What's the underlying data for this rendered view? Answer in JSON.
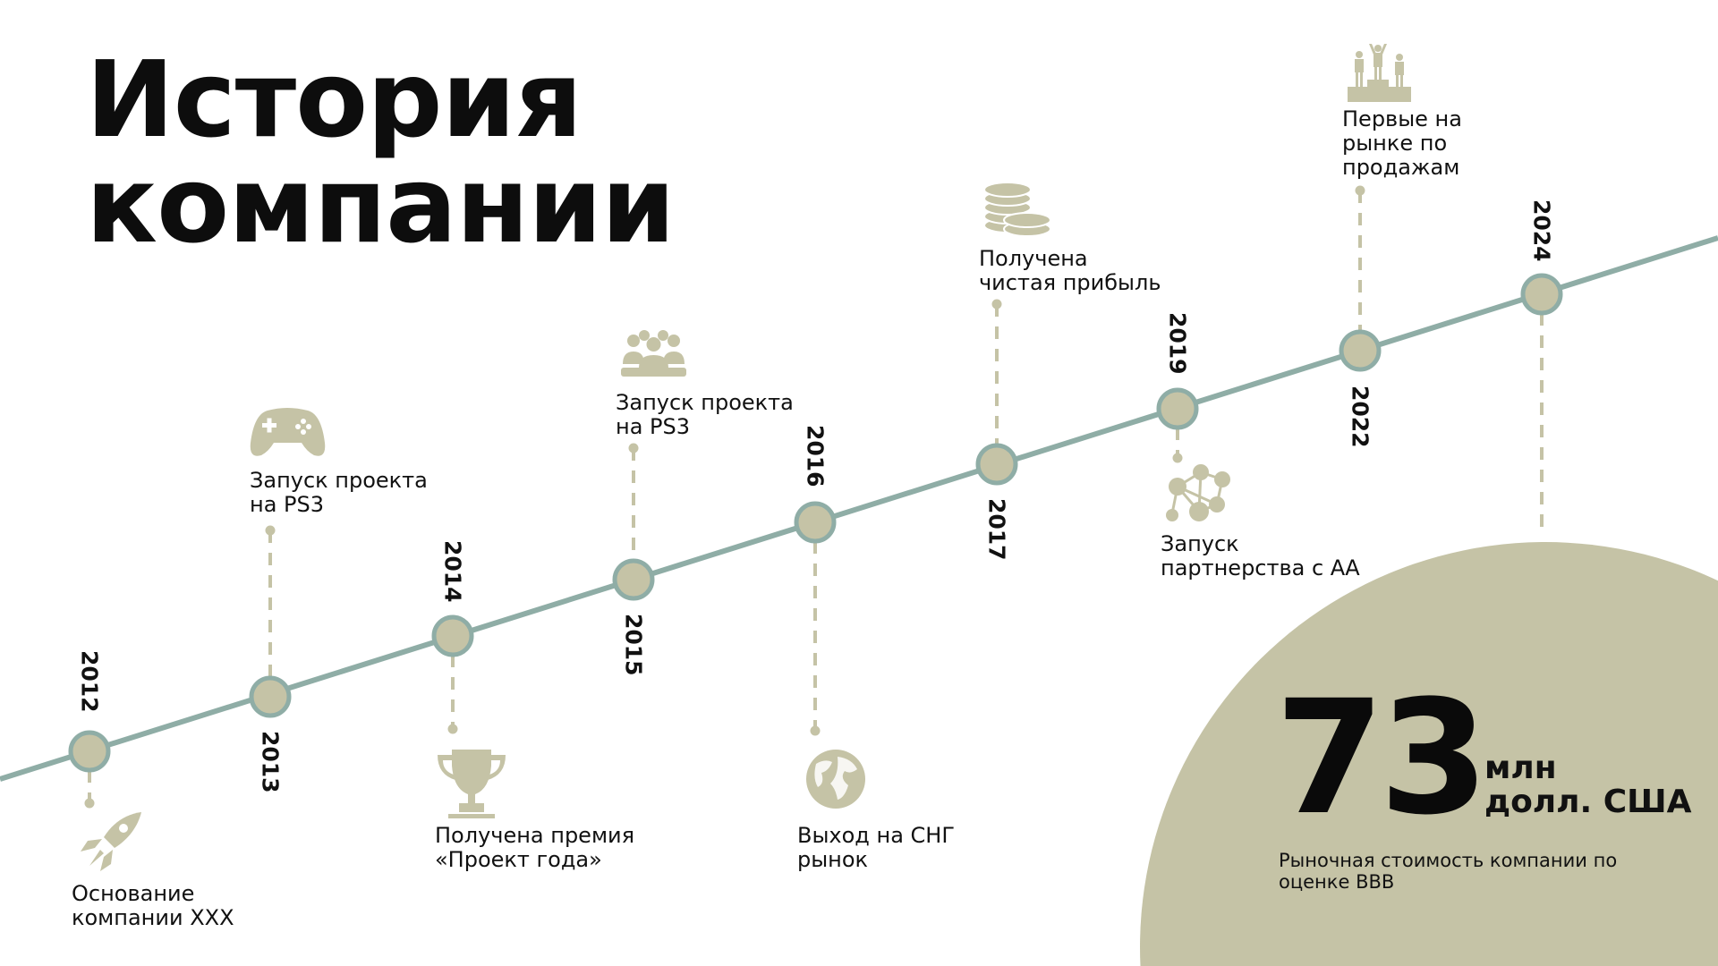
{
  "title": {
    "line1": "История",
    "line2": "компании"
  },
  "colors": {
    "line": "#8fada6",
    "accent": "#c5c3a6",
    "text": "#111111"
  },
  "events": [
    {
      "year": "2012",
      "icon": "rocket-icon",
      "lines": [
        "Основание",
        "компании XXX"
      ]
    },
    {
      "year": "2013",
      "icon": "gamepad-icon",
      "lines": [
        "Запуск проекта",
        "на PS3"
      ]
    },
    {
      "year": "2014",
      "icon": "trophy-icon",
      "lines": [
        "Получена премия",
        "«Проект года»"
      ]
    },
    {
      "year": "2015",
      "icon": "people-group-icon",
      "lines": [
        "Запуск проекта",
        "на PS3"
      ]
    },
    {
      "year": "2016",
      "icon": "globe-icon",
      "lines": [
        "Выход на СНГ",
        "рынок"
      ]
    },
    {
      "year": "2017",
      "icon": "coins-icon",
      "lines": [
        "Получена",
        "чистая прибыль"
      ]
    },
    {
      "year": "2019",
      "icon": "network-icon",
      "lines": [
        "Запуск",
        "партнерства с АА"
      ]
    },
    {
      "year": "2022",
      "icon": "podium-icon",
      "lines": [
        "Первые на",
        "рынке по",
        "продажам"
      ]
    },
    {
      "year": "2024",
      "icon": "",
      "lines": []
    }
  ],
  "stat": {
    "value": "73",
    "unit_line1": "млн",
    "unit_line2": "долл. США",
    "desc_line1": "Рыночная стоимость компании по",
    "desc_line2": "оценке ВВВ"
  }
}
